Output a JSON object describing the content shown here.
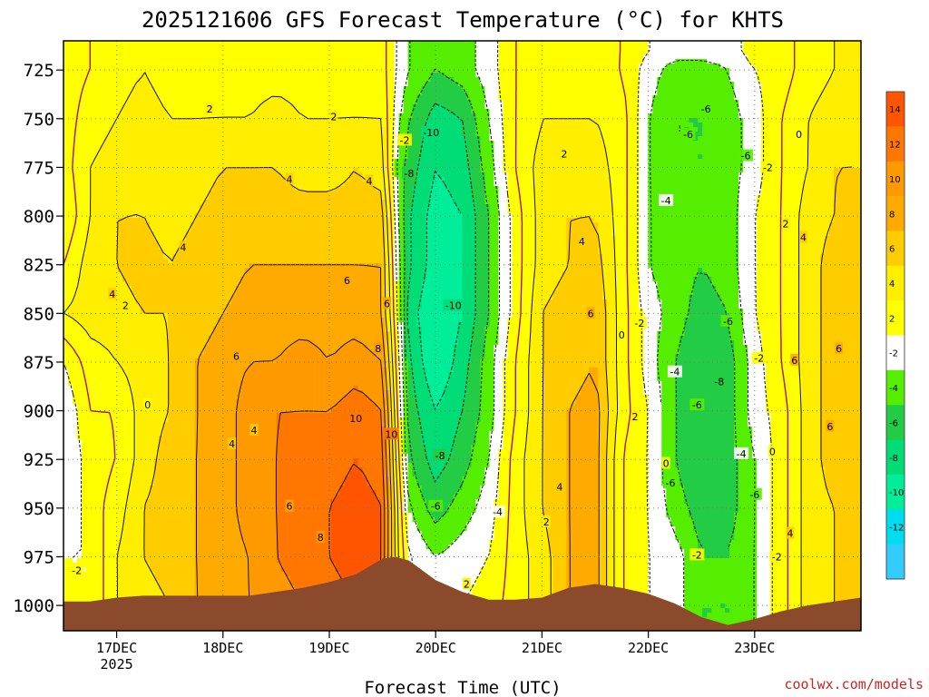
{
  "title": "2025121606 GFS Forecast Temperature (°C) for KHTS",
  "x_axis_title": "Forecast Time (UTC)",
  "credit": "coolwx.com/models",
  "colors": {
    "bands": {
      "-14": "#33ccff",
      "-12": "#00ddee",
      "-10": "#00ee99",
      "-8": "#00dd77",
      "-6": "#22cc44",
      "-4": "#55ee00",
      "-2": "#ffffff",
      "0": "#ffffff",
      "2": "#ffff00",
      "4": "#ffdd00",
      "6": "#ffbb00",
      "8": "#ff9900",
      "10": "#ff7700",
      "12": "#ff5500"
    },
    "terrain": "#8b4a2c",
    "zero_line": "#aa1166"
  },
  "colorbar": {
    "labels": [
      "14",
      "12",
      "10",
      "8",
      "6",
      "4",
      "2",
      "-2",
      "-4",
      "-6",
      "-8",
      "-10",
      "-12"
    ],
    "colors": [
      "#ff5500",
      "#ff7700",
      "#ff9900",
      "#ffaa00",
      "#ffcc00",
      "#ffee00",
      "#ffff00",
      "#ffffff",
      "#55ee00",
      "#22cc44",
      "#00dd77",
      "#00ee99",
      "#00ddee",
      "#33ccff"
    ]
  },
  "chart_data": {
    "type": "heatmap",
    "title": "2025121606 GFS Forecast Temperature (°C) for KHTS",
    "xlabel": "Forecast Time (UTC)",
    "ylabel": "",
    "x_ticks": [
      "17DEC\n2025",
      "18DEC",
      "19DEC",
      "20DEC",
      "21DEC",
      "22DEC",
      "23DEC"
    ],
    "x_range_hours": [
      6,
      186
    ],
    "y_ticks": [
      725,
      750,
      775,
      800,
      825,
      850,
      875,
      900,
      925,
      950,
      975,
      1000
    ],
    "y_range_hpa": [
      1013,
      710
    ],
    "contour_interval_c": 2,
    "grid": true,
    "contour_labels": [
      {
        "t": 9,
        "p": 982,
        "v": "-2"
      },
      {
        "t": 17,
        "p": 840,
        "v": "4"
      },
      {
        "t": 20,
        "p": 846,
        "v": "2"
      },
      {
        "t": 25,
        "p": 897,
        "v": "0"
      },
      {
        "t": 33,
        "p": 816,
        "v": "4"
      },
      {
        "t": 39,
        "p": 745,
        "v": "2"
      },
      {
        "t": 44,
        "p": 917,
        "v": "4"
      },
      {
        "t": 45,
        "p": 872,
        "v": "6"
      },
      {
        "t": 49,
        "p": 910,
        "v": "4"
      },
      {
        "t": 57,
        "p": 781,
        "v": "4"
      },
      {
        "t": 57,
        "p": 949,
        "v": "6"
      },
      {
        "t": 64,
        "p": 965,
        "v": "8"
      },
      {
        "t": 67,
        "p": 749,
        "v": "2"
      },
      {
        "t": 70,
        "p": 833,
        "v": "6"
      },
      {
        "t": 72,
        "p": 904,
        "v": "10"
      },
      {
        "t": 75,
        "p": 782,
        "v": "4"
      },
      {
        "t": 77,
        "p": 868,
        "v": "8"
      },
      {
        "t": 79,
        "p": 845,
        "v": "6"
      },
      {
        "t": 80,
        "p": 912,
        "v": "10"
      },
      {
        "t": 83,
        "p": 761,
        "v": "-2"
      },
      {
        "t": 84,
        "p": 778,
        "v": "-8"
      },
      {
        "t": 89,
        "p": 757,
        "v": "-10"
      },
      {
        "t": 94,
        "p": 846,
        "v": "-10"
      },
      {
        "t": 91,
        "p": 923,
        "v": "-8"
      },
      {
        "t": 90,
        "p": 949,
        "v": "-6"
      },
      {
        "t": 97,
        "p": 989,
        "v": "2"
      },
      {
        "t": 104,
        "p": 952,
        "v": "-4"
      },
      {
        "t": 115,
        "p": 957,
        "v": "2"
      },
      {
        "t": 118,
        "p": 939,
        "v": "4"
      },
      {
        "t": 119,
        "p": 768,
        "v": "2"
      },
      {
        "t": 123,
        "p": 813,
        "v": "4"
      },
      {
        "t": 125,
        "p": 850,
        "v": "6"
      },
      {
        "t": 132,
        "p": 861,
        "v": "0"
      },
      {
        "t": 135,
        "p": 903,
        "v": "2"
      },
      {
        "t": 136,
        "p": 855,
        "v": "-2"
      },
      {
        "t": 142,
        "p": 927,
        "v": "0"
      },
      {
        "t": 142,
        "p": 792,
        "v": "-4"
      },
      {
        "t": 143,
        "p": 937,
        "v": "-6"
      },
      {
        "t": 144,
        "p": 880,
        "v": "-4"
      },
      {
        "t": 147,
        "p": 758,
        "v": "-6"
      },
      {
        "t": 149,
        "p": 897,
        "v": "-6"
      },
      {
        "t": 149,
        "p": 974,
        "v": "-2"
      },
      {
        "t": 151,
        "p": 745,
        "v": "-6"
      },
      {
        "t": 154,
        "p": 885,
        "v": "-8"
      },
      {
        "t": 156,
        "p": 854,
        "v": "-6"
      },
      {
        "t": 159,
        "p": 922,
        "v": "-4"
      },
      {
        "t": 160,
        "p": 769,
        "v": "-6"
      },
      {
        "t": 162,
        "p": 943,
        "v": "-6"
      },
      {
        "t": 163,
        "p": 873,
        "v": "-2"
      },
      {
        "t": 165,
        "p": 775,
        "v": "-2"
      },
      {
        "t": 166,
        "p": 921,
        "v": "0"
      },
      {
        "t": 167,
        "p": 975,
        "v": "-2"
      },
      {
        "t": 169,
        "p": 804,
        "v": "2"
      },
      {
        "t": 170,
        "p": 963,
        "v": "4"
      },
      {
        "t": 171,
        "p": 874,
        "v": "6"
      },
      {
        "t": 172,
        "p": 758,
        "v": "0"
      },
      {
        "t": 173,
        "p": 811,
        "v": "4"
      },
      {
        "t": 179,
        "p": 908,
        "v": "6"
      },
      {
        "t": 181,
        "p": 868,
        "v": "6"
      }
    ],
    "temperature_grid": {
      "time_hours": [
        6,
        12,
        18,
        24,
        30,
        36,
        42,
        48,
        54,
        60,
        66,
        72,
        78,
        81,
        84,
        90,
        96,
        102,
        108,
        114,
        120,
        126,
        132,
        138,
        144,
        150,
        156,
        162,
        168,
        174,
        180,
        186
      ],
      "pressure_hpa": [
        715,
        725,
        750,
        775,
        800,
        825,
        850,
        875,
        900,
        925,
        950,
        975,
        1000,
        1013
      ],
      "temps_c": [
        [
          -1,
          -1,
          -1,
          -1,
          -2,
          0,
          2,
          -2,
          -4,
          -4,
          -4,
          -2,
          -2,
          -2
        ],
        [
          0,
          0,
          1,
          2,
          2,
          3,
          3,
          1,
          0,
          -1,
          -1,
          -2,
          -2,
          -2
        ],
        [
          1,
          1,
          2,
          3,
          4,
          4,
          3,
          2,
          0,
          0,
          1,
          2,
          2,
          2
        ],
        [
          2,
          2,
          3,
          4,
          4,
          5,
          4,
          3,
          3,
          3,
          4,
          4,
          3,
          3
        ],
        [
          1,
          1,
          2,
          3,
          3,
          4,
          4,
          4,
          4,
          5,
          5,
          5,
          4,
          4
        ],
        [
          1,
          1,
          2,
          3,
          4,
          5,
          5,
          6,
          6,
          6,
          6,
          6,
          6,
          6
        ],
        [
          1,
          1,
          2,
          4,
          5,
          5,
          6,
          7,
          7,
          7,
          7,
          7,
          7,
          7
        ],
        [
          1,
          1,
          2,
          4,
          5,
          6,
          7,
          8,
          9,
          9,
          9,
          8,
          8,
          8
        ],
        [
          1,
          1,
          3,
          4,
          5,
          6,
          7,
          8,
          10,
          10,
          10,
          10,
          9,
          9
        ],
        [
          1,
          1,
          2,
          3,
          5,
          6,
          7,
          9,
          10,
          11,
          11,
          11,
          10,
          10
        ],
        [
          1,
          1,
          2,
          3,
          5,
          6,
          7,
          8,
          10,
          11,
          12,
          12,
          11,
          11
        ],
        [
          1,
          1,
          2,
          4,
          5,
          6,
          7,
          9,
          11,
          12,
          13,
          13,
          12,
          12
        ],
        [
          1,
          1,
          2,
          3,
          5,
          6,
          6,
          8,
          10,
          11,
          12,
          12,
          11,
          11
        ],
        [
          -2,
          -2,
          -3,
          -4,
          -3,
          -2,
          -1,
          0,
          1,
          2,
          3,
          3,
          3,
          3
        ],
        [
          -4,
          -4,
          -6,
          -7,
          -8,
          -8,
          -9,
          -8,
          -7,
          -6,
          -4,
          -2,
          -2,
          -2
        ],
        [
          -6,
          -6,
          -9,
          -10,
          -11,
          -11,
          -12,
          -12,
          -10,
          -9,
          -7,
          -4,
          -2,
          -2
        ],
        [
          -5,
          -5,
          -8,
          -9,
          -10,
          -10,
          -10,
          -9,
          -8,
          -7,
          -5,
          -3,
          -2,
          -2
        ],
        [
          -3,
          -3,
          -4,
          -5,
          -6,
          -6,
          -6,
          -5,
          -5,
          -4,
          -3,
          -2,
          -1,
          -1
        ],
        [
          0,
          0,
          0,
          0,
          -1,
          -1,
          -1,
          0,
          0,
          1,
          1,
          1,
          1,
          1
        ],
        [
          1,
          1,
          2,
          3,
          3,
          3,
          4,
          4,
          4,
          4,
          4,
          3,
          3,
          3
        ],
        [
          1,
          1,
          2,
          3,
          4,
          4,
          5,
          5,
          6,
          6,
          6,
          6,
          6,
          6
        ],
        [
          1,
          1,
          2,
          3,
          4,
          5,
          6,
          6,
          7,
          7,
          7,
          7,
          7,
          7
        ],
        [
          0,
          0,
          1,
          1,
          1,
          1,
          1,
          1,
          1,
          0,
          0,
          0,
          0,
          0
        ],
        [
          -2,
          -3,
          -4,
          -4,
          -4,
          -4,
          -3,
          -3,
          -2,
          -2,
          -2,
          -2,
          -2,
          -2
        ],
        [
          -3,
          -5,
          -6,
          -6,
          -5,
          -5,
          -5,
          -6,
          -6,
          -6,
          -5,
          -3,
          -3,
          -3
        ],
        [
          -3,
          -5,
          -6,
          -6,
          -6,
          -6,
          -7,
          -8,
          -8,
          -8,
          -7,
          -6,
          -6,
          -6
        ],
        [
          -3,
          -4,
          -5,
          -5,
          -5,
          -5,
          -6,
          -7,
          -7,
          -7,
          -7,
          -6,
          -6,
          -6
        ],
        [
          -1,
          -2,
          -3,
          -3,
          -2,
          -2,
          -2,
          -3,
          -3,
          -4,
          -4,
          -4,
          -4,
          -4
        ],
        [
          -1,
          -1,
          0,
          0,
          0,
          0,
          0,
          0,
          -1,
          -1,
          -1,
          -1,
          -1,
          -1
        ],
        [
          1,
          1,
          2,
          2,
          3,
          3,
          3,
          3,
          3,
          3,
          3,
          3,
          3,
          3
        ],
        [
          2,
          2,
          3,
          4,
          4,
          5,
          5,
          5,
          5,
          5,
          4,
          4,
          4,
          4
        ],
        [
          3,
          3,
          4,
          4,
          5,
          5,
          6,
          6,
          6,
          6,
          5,
          5,
          5,
          5
        ]
      ]
    },
    "surface_pressure_hpa": {
      "time_hours": [
        6,
        12,
        18,
        24,
        30,
        36,
        42,
        48,
        54,
        60,
        66,
        72,
        78,
        81,
        84,
        90,
        96,
        102,
        108,
        114,
        120,
        126,
        132,
        138,
        144,
        150,
        156,
        162,
        168,
        174,
        180,
        186
      ],
      "values": [
        998,
        998,
        996,
        995,
        995,
        995,
        995,
        995,
        993,
        991,
        988,
        984,
        976,
        975,
        977,
        987,
        993,
        997,
        997,
        996,
        991,
        989,
        991,
        994,
        999,
        1006,
        1010,
        1007,
        1003,
        1000,
        998,
        996
      ]
    }
  }
}
